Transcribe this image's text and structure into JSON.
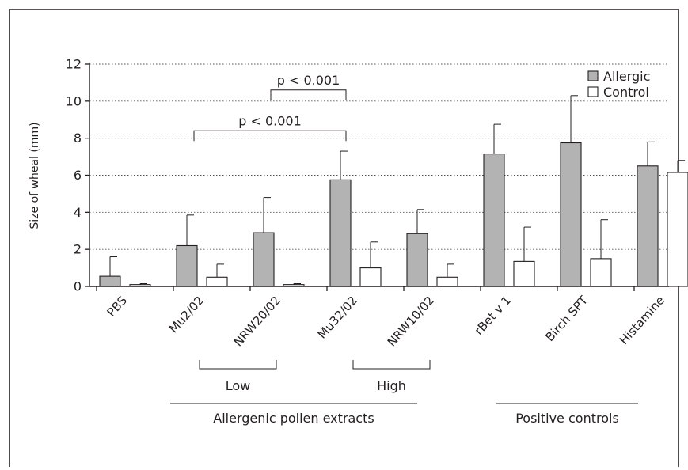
{
  "chart_data": {
    "type": "bar",
    "ylabel": "Size of wheal (mm)",
    "ylim": [
      0,
      12
    ],
    "yticks": [
      0,
      2,
      4,
      6,
      8,
      10,
      12
    ],
    "grid": true,
    "legend_position": "top-right",
    "categories": [
      "PBS",
      "Mu2/02",
      "NRW20/02",
      "Mu32/02",
      "NRW10/02",
      "rBet v 1",
      "Birch SPT",
      "Histamine"
    ],
    "series": [
      {
        "name": "Allergic",
        "color": "#b3b3b3",
        "values": [
          0.55,
          2.2,
          2.9,
          5.75,
          2.85,
          7.15,
          7.75,
          6.5
        ],
        "error_upper": [
          1.6,
          3.85,
          4.8,
          7.3,
          4.15,
          8.75,
          10.3,
          7.8
        ]
      },
      {
        "name": "Control",
        "color": "#ffffff",
        "values": [
          0.1,
          0.5,
          0.1,
          1.0,
          0.5,
          1.35,
          1.5,
          6.15
        ],
        "error_upper": [
          0.15,
          1.2,
          0.15,
          2.4,
          1.2,
          3.2,
          3.6,
          6.8
        ]
      }
    ],
    "annotations": [
      {
        "text": "p < 0.001",
        "from": "Mu2/02",
        "to": "Mu32/02",
        "level": 8.4
      },
      {
        "text": "p < 0.001",
        "from": "NRW20/02",
        "to": "Mu32/02",
        "level": 10.6
      }
    ],
    "group_labels": [
      {
        "text": "Low",
        "from": "Mu2/02",
        "to": "NRW20/02",
        "tier": 1
      },
      {
        "text": "High",
        "from": "Mu32/02",
        "to": "NRW10/02",
        "tier": 1
      },
      {
        "text": "Allergenic pollen extracts",
        "from": "PBS",
        "to": "NRW10/02",
        "tier": 2
      },
      {
        "text": "Positive controls",
        "from": "rBet v 1",
        "to": "Histamine",
        "tier": 2
      }
    ]
  }
}
